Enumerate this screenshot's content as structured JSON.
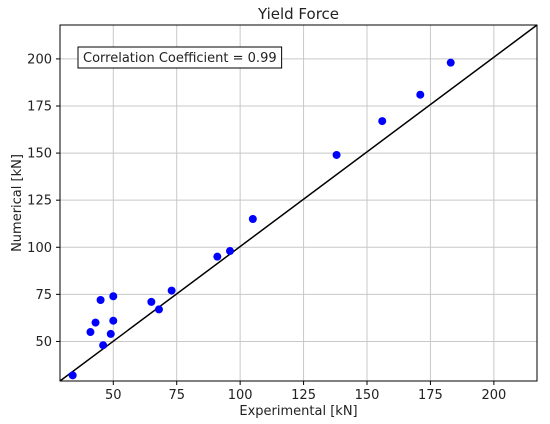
{
  "chart_data": {
    "type": "scatter",
    "title": "Yield Force",
    "xlabel": "Experimental [kN]",
    "ylabel": "Numerical [kN]",
    "xlim": [
      29,
      217
    ],
    "ylim": [
      29,
      218
    ],
    "xticks": [
      50,
      75,
      100,
      125,
      150,
      175,
      200
    ],
    "yticks": [
      50,
      75,
      100,
      125,
      150,
      175,
      200
    ],
    "grid": true,
    "annotation": "Correlation Coefficient = 0.99",
    "reference_line": {
      "from": [
        29,
        29
      ],
      "to": [
        217,
        218
      ]
    },
    "colors": {
      "points": "#0000ff",
      "line": "#000000",
      "grid": "#c8c8c8"
    },
    "points": [
      {
        "x": 34,
        "y": 32
      },
      {
        "x": 41,
        "y": 55
      },
      {
        "x": 43,
        "y": 60
      },
      {
        "x": 45,
        "y": 72
      },
      {
        "x": 46,
        "y": 48
      },
      {
        "x": 49,
        "y": 54
      },
      {
        "x": 50,
        "y": 61
      },
      {
        "x": 50,
        "y": 74
      },
      {
        "x": 65,
        "y": 71
      },
      {
        "x": 68,
        "y": 67
      },
      {
        "x": 73,
        "y": 77
      },
      {
        "x": 91,
        "y": 95
      },
      {
        "x": 96,
        "y": 98
      },
      {
        "x": 105,
        "y": 115
      },
      {
        "x": 138,
        "y": 149
      },
      {
        "x": 156,
        "y": 167
      },
      {
        "x": 171,
        "y": 181
      },
      {
        "x": 183,
        "y": 198
      }
    ]
  }
}
